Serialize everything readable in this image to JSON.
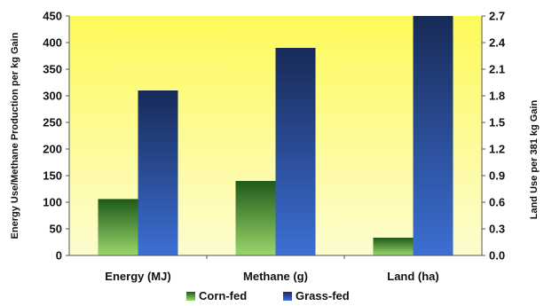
{
  "chart_data": {
    "type": "bar",
    "categories": [
      "Energy (MJ)",
      "Methane (g)",
      "Land (ha)"
    ],
    "series": [
      {
        "name": "Corn-fed",
        "values": [
          106,
          140,
          0.2
        ],
        "axis": "left"
      },
      {
        "name": "Grass-fed",
        "values": [
          310,
          390,
          2.7
        ],
        "axis": "right_for_land"
      }
    ],
    "ylabel": "Energy Use/Methane Production per kg Gain",
    "y2label": "Land Use per 381 kg Gain",
    "ylim": [
      0,
      450
    ],
    "y2lim": [
      0,
      2.7
    ],
    "yticks": [
      "0",
      "50",
      "100",
      "150",
      "200",
      "250",
      "300",
      "350",
      "400",
      "450"
    ],
    "y2ticks": [
      "0.0",
      "0.3",
      "0.6",
      "0.9",
      "1.2",
      "1.5",
      "1.8",
      "2.1",
      "2.4",
      "2.7"
    ],
    "grid": false,
    "legend_position": "bottom",
    "colors": {
      "plot_background_top": "#fdfa5a",
      "plot_background_bottom": "#fdfcd0",
      "corn_fed_top": "#1f5a1a",
      "corn_fed_bottom": "#9ad66b",
      "grass_fed_top": "#172a57",
      "grass_fed_bottom": "#3d6fd4"
    }
  }
}
